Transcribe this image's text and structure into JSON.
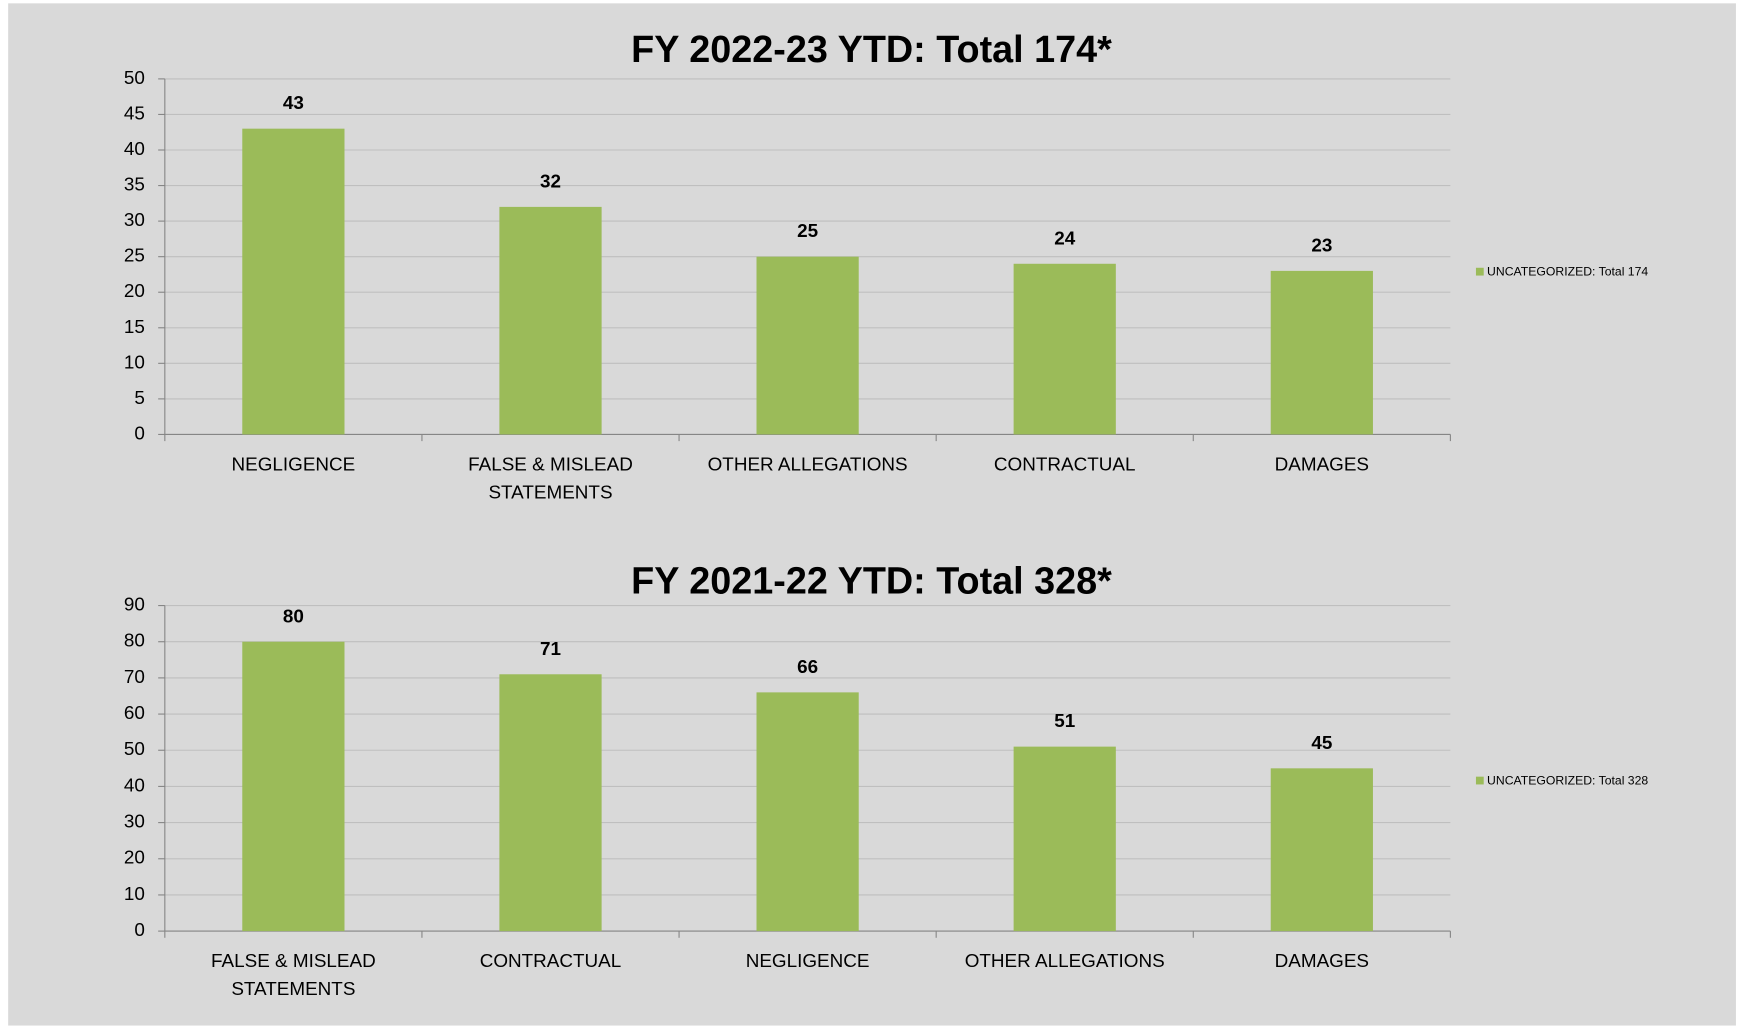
{
  "chart_data": [
    {
      "type": "bar",
      "title": "FY 2022-23 YTD: Total 174*",
      "categories": [
        "NEGLIGENCE",
        "FALSE & MISLEAD STATEMENTS",
        "OTHER ALLEGATIONS",
        "CONTRACTUAL",
        "DAMAGES"
      ],
      "series": [
        {
          "name": "UNCATEGORIZED: Total 174",
          "color": "#9bbb59",
          "values": [
            43,
            32,
            25,
            24,
            23
          ]
        }
      ],
      "ylim": [
        0,
        50
      ],
      "yticks": [
        0,
        5,
        10,
        15,
        20,
        25,
        30,
        35,
        40,
        45,
        50
      ],
      "grid": true,
      "legend": "right"
    },
    {
      "type": "bar",
      "title": "FY 2021-22 YTD: Total 328*",
      "categories": [
        "FALSE & MISLEAD STATEMENTS",
        "CONTRACTUAL",
        "NEGLIGENCE",
        "OTHER ALLEGATIONS",
        "DAMAGES"
      ],
      "series": [
        {
          "name": "UNCATEGORIZED: Total 328",
          "color": "#9bbb59",
          "values": [
            80,
            71,
            66,
            51,
            45
          ]
        }
      ],
      "ylim": [
        0,
        90
      ],
      "yticks": [
        0,
        10,
        20,
        30,
        40,
        50,
        60,
        70,
        80,
        90
      ],
      "grid": true,
      "legend": "right"
    }
  ]
}
